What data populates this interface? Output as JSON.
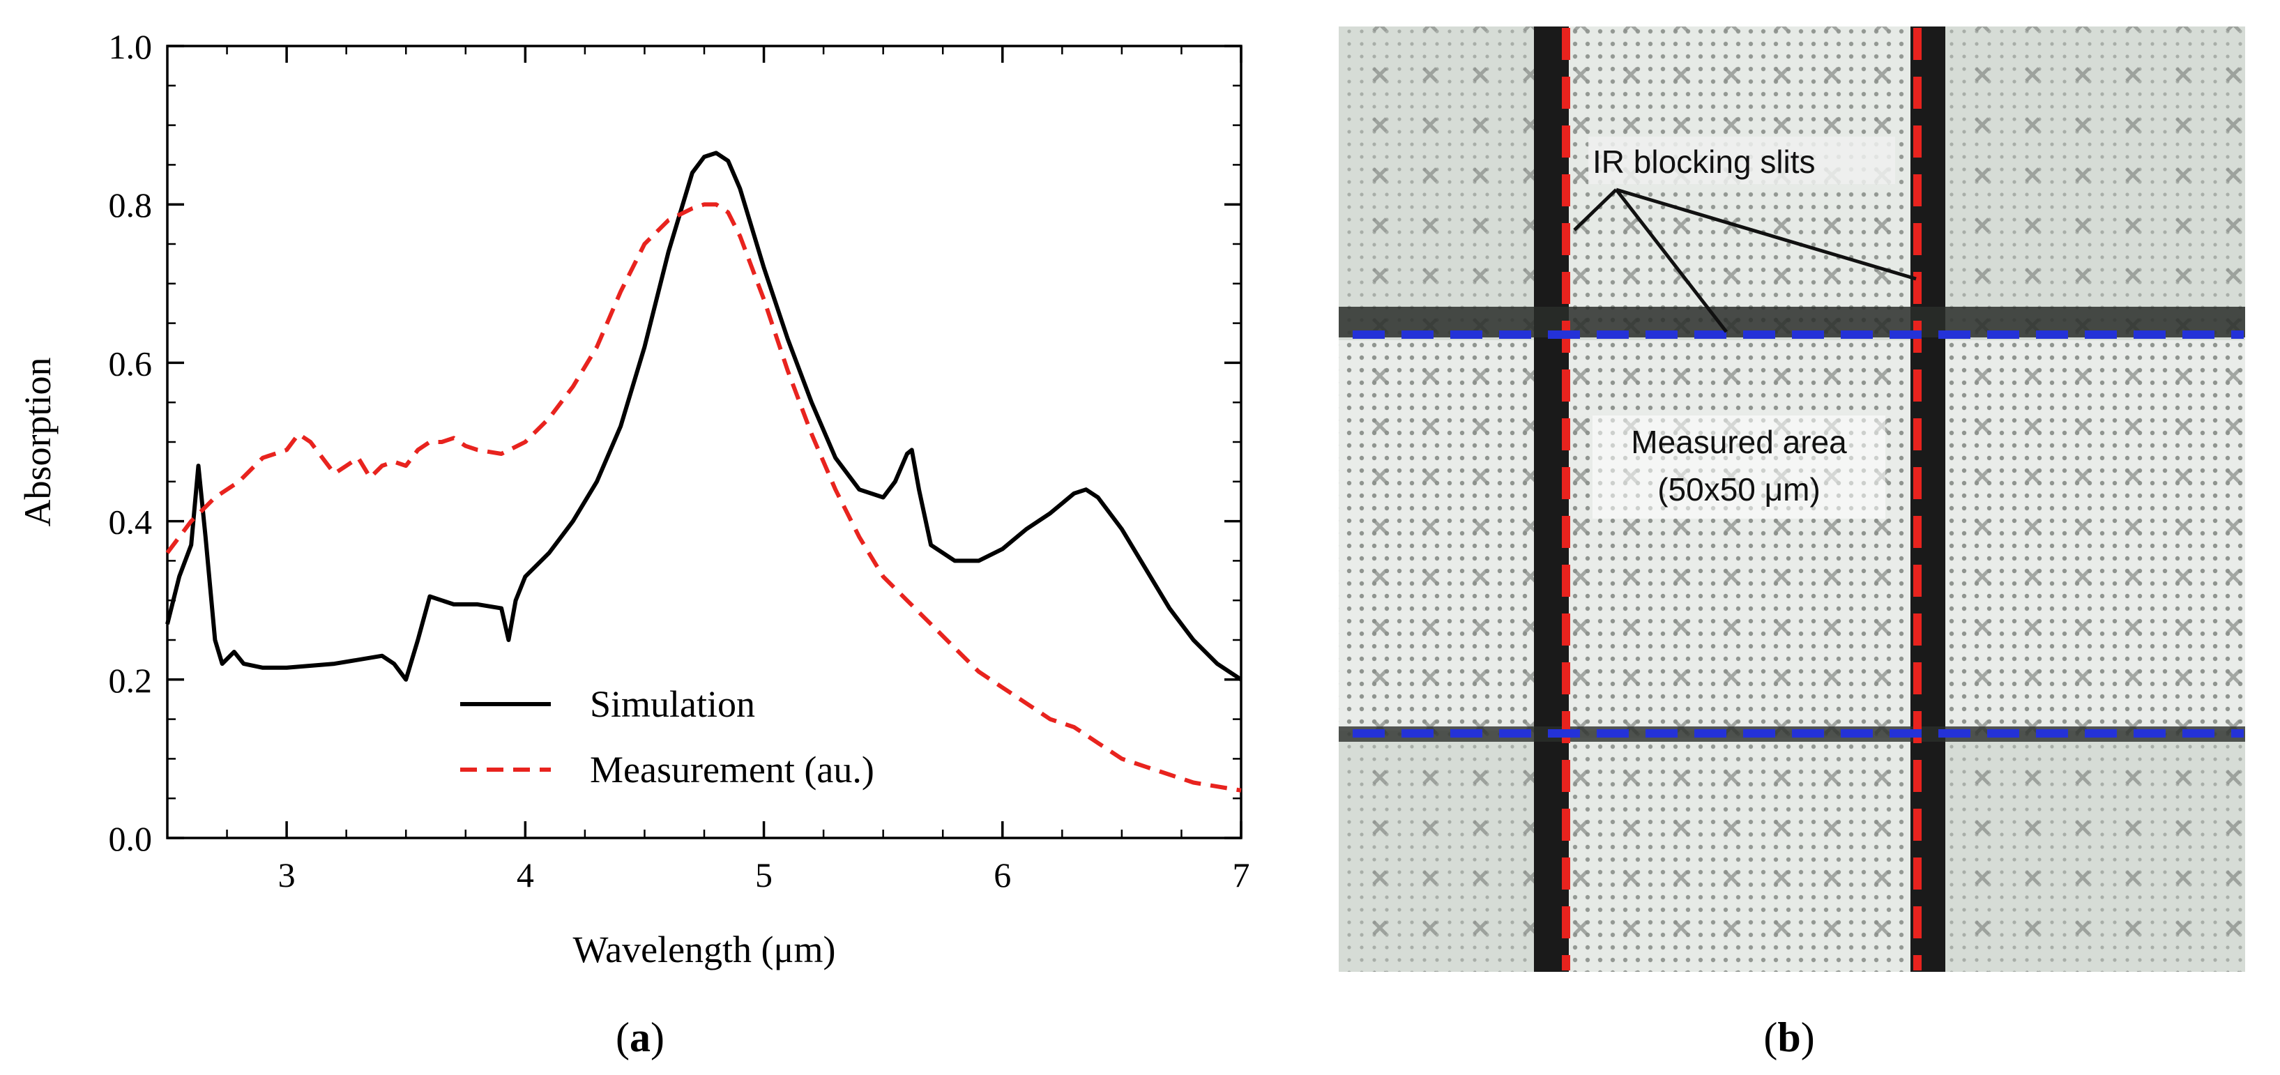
{
  "panels": {
    "a": {
      "label": "a"
    },
    "b": {
      "label": "b"
    }
  },
  "chart_data": {
    "type": "line",
    "title": "",
    "xlabel": "Wavelength (μm)",
    "ylabel": "Absorption",
    "xlim": [
      2.5,
      7
    ],
    "ylim": [
      0,
      1
    ],
    "xticks": [
      3,
      4,
      5,
      6,
      7
    ],
    "yticks": [
      0.0,
      0.2,
      0.4,
      0.6,
      0.8,
      1.0
    ],
    "grid": false,
    "legend_position": "bottom-center",
    "series": [
      {
        "name": "Simulation",
        "color": "#000000",
        "style": "solid",
        "x": [
          2.5,
          2.55,
          2.6,
          2.63,
          2.66,
          2.7,
          2.73,
          2.78,
          2.82,
          2.9,
          3.0,
          3.2,
          3.4,
          3.45,
          3.5,
          3.55,
          3.6,
          3.7,
          3.8,
          3.9,
          3.93,
          3.96,
          4.0,
          4.05,
          4.1,
          4.2,
          4.3,
          4.4,
          4.5,
          4.6,
          4.7,
          4.75,
          4.8,
          4.85,
          4.9,
          5.0,
          5.1,
          5.2,
          5.3,
          5.4,
          5.5,
          5.55,
          5.6,
          5.62,
          5.65,
          5.7,
          5.8,
          5.9,
          6.0,
          6.1,
          6.2,
          6.3,
          6.35,
          6.4,
          6.5,
          6.6,
          6.7,
          6.8,
          6.9,
          7.0
        ],
        "y": [
          0.27,
          0.33,
          0.37,
          0.47,
          0.38,
          0.25,
          0.22,
          0.235,
          0.22,
          0.215,
          0.215,
          0.22,
          0.23,
          0.22,
          0.2,
          0.25,
          0.305,
          0.295,
          0.295,
          0.29,
          0.25,
          0.3,
          0.33,
          0.345,
          0.36,
          0.4,
          0.45,
          0.52,
          0.62,
          0.74,
          0.84,
          0.86,
          0.865,
          0.855,
          0.82,
          0.72,
          0.63,
          0.55,
          0.48,
          0.44,
          0.43,
          0.45,
          0.485,
          0.49,
          0.44,
          0.37,
          0.35,
          0.35,
          0.365,
          0.39,
          0.41,
          0.435,
          0.44,
          0.43,
          0.39,
          0.34,
          0.29,
          0.25,
          0.22,
          0.2
        ]
      },
      {
        "name": "Measurement (au.)",
        "color": "#e8231e",
        "style": "dashed",
        "x": [
          2.5,
          2.6,
          2.7,
          2.8,
          2.9,
          3.0,
          3.05,
          3.1,
          3.15,
          3.2,
          3.25,
          3.3,
          3.35,
          3.4,
          3.45,
          3.5,
          3.55,
          3.6,
          3.65,
          3.7,
          3.75,
          3.8,
          3.9,
          4.0,
          4.1,
          4.2,
          4.3,
          4.4,
          4.5,
          4.6,
          4.7,
          4.75,
          4.8,
          4.85,
          4.9,
          5.0,
          5.1,
          5.2,
          5.3,
          5.4,
          5.5,
          5.6,
          5.7,
          5.8,
          5.9,
          6.0,
          6.1,
          6.2,
          6.3,
          6.4,
          6.5,
          6.6,
          6.7,
          6.8,
          6.9,
          7.0
        ],
        "y": [
          0.36,
          0.4,
          0.43,
          0.45,
          0.48,
          0.49,
          0.51,
          0.5,
          0.48,
          0.46,
          0.47,
          0.48,
          0.455,
          0.47,
          0.475,
          0.47,
          0.49,
          0.5,
          0.5,
          0.505,
          0.495,
          0.49,
          0.485,
          0.5,
          0.53,
          0.57,
          0.62,
          0.69,
          0.75,
          0.78,
          0.795,
          0.8,
          0.8,
          0.79,
          0.76,
          0.68,
          0.59,
          0.51,
          0.44,
          0.38,
          0.33,
          0.3,
          0.27,
          0.24,
          0.21,
          0.19,
          0.17,
          0.15,
          0.14,
          0.12,
          0.1,
          0.09,
          0.08,
          0.07,
          0.065,
          0.06
        ]
      }
    ]
  },
  "micrograph": {
    "annotations": {
      "slits": "IR blocking slits",
      "area_line1": "Measured area",
      "area_line2": "(50x50 μm)"
    },
    "colors": {
      "background": "#dfe3df",
      "grid_cell": "#eef0ee",
      "dark_bar": "#1a1a1a",
      "red_dash": "#e8231e",
      "blue_dash": "#2432d8"
    }
  }
}
